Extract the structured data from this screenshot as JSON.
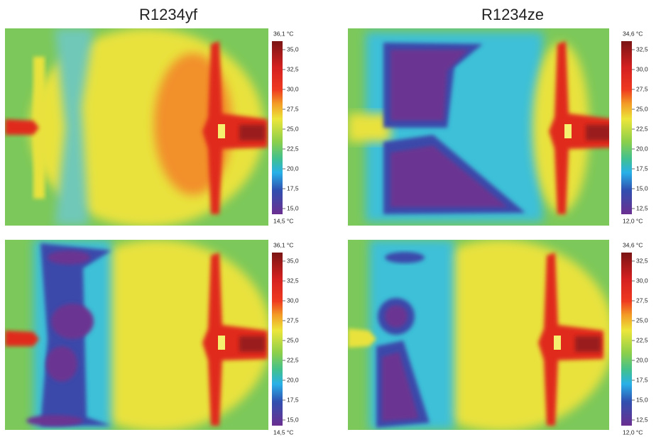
{
  "titles": [
    "R1234yf",
    "R1234ze"
  ],
  "panels": [
    {
      "max_label": "36,1 °C",
      "min_label": "14,5 °C",
      "ticks": [
        "35,0",
        "32,5",
        "30,0",
        "27,5",
        "25,0",
        "22,5",
        "20,0",
        "17,5",
        "15,0"
      ]
    },
    {
      "max_label": "34,6 °C",
      "min_label": "12,0 °C",
      "ticks": [
        "32,5",
        "30,0",
        "27,5",
        "25,0",
        "22,5",
        "20,0",
        "17,5",
        "15,0",
        "12,5"
      ]
    },
    {
      "max_label": "36,1 °C",
      "min_label": "14,5 °C",
      "ticks": [
        "35,0",
        "32,5",
        "30,0",
        "27,5",
        "25,0",
        "22,5",
        "20,0",
        "17,5",
        "15,0"
      ]
    },
    {
      "max_label": "34,6 °C",
      "min_label": "12,0 °C",
      "ticks": [
        "32,5",
        "30,0",
        "27,5",
        "25,0",
        "22,5",
        "20,0",
        "17,5",
        "15,0",
        "12,5"
      ]
    }
  ]
}
